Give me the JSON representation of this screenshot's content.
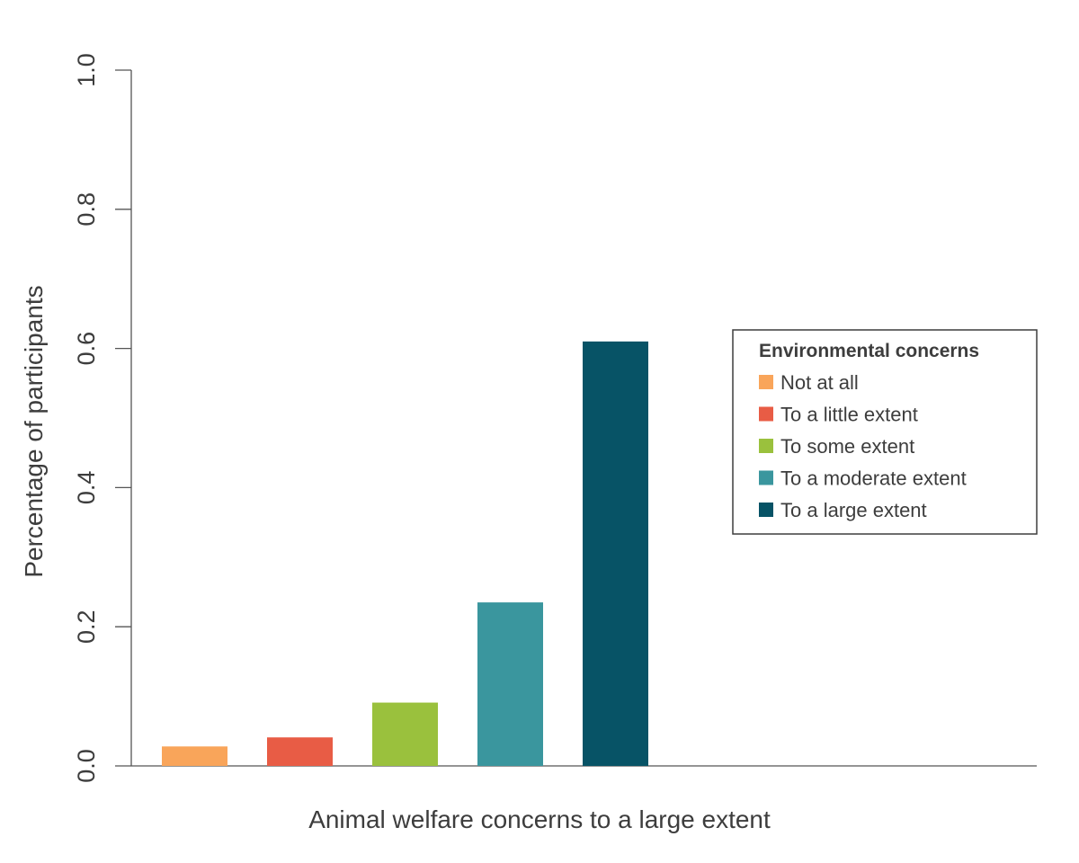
{
  "chart_data": {
    "type": "bar",
    "title": "",
    "xlabel": "Animal welfare concerns to a large extent",
    "ylabel": "Percentage of participants",
    "ylim": [
      0,
      1.0
    ],
    "yticks": [
      "0.0",
      "0.2",
      "0.4",
      "0.6",
      "0.8",
      "1.0"
    ],
    "grid": false,
    "legend": {
      "title": "Environmental concerns",
      "placement": "right"
    },
    "series": [
      {
        "name": "Not at all",
        "color": "#F9A55A",
        "value": 0.028
      },
      {
        "name": "To a little extent",
        "color": "#E85C45",
        "value": 0.041
      },
      {
        "name": "To some extent",
        "color": "#9AC13D",
        "value": 0.091
      },
      {
        "name": "To a moderate extent",
        "color": "#3A969E",
        "value": 0.235
      },
      {
        "name": "To a large extent",
        "color": "#075366",
        "value": 0.61
      }
    ]
  }
}
